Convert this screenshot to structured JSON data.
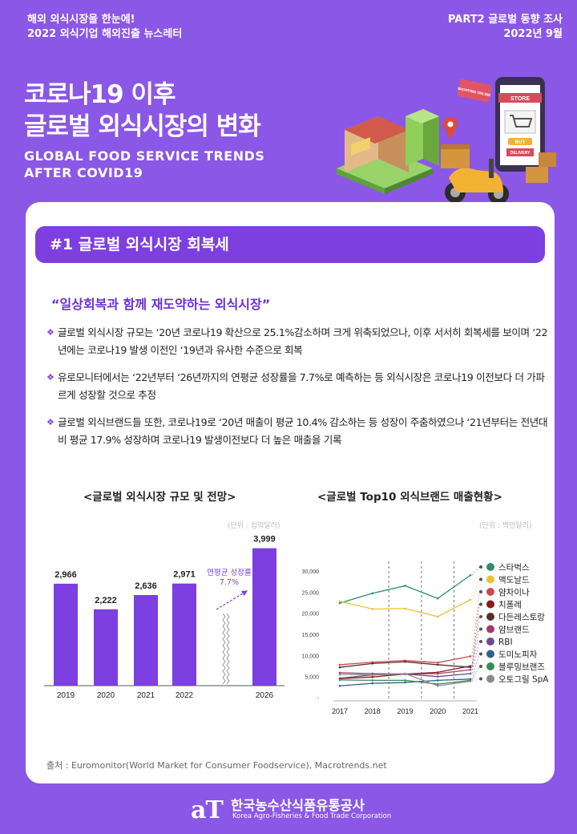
{
  "header": {
    "left_line1": "해외 외식시장을 한눈에!",
    "left_line2": "2022 외식기업 해외진출 뉴스레터",
    "right_line1": "PART2 글로벌 동향 조사",
    "right_line2": "2022년 9월"
  },
  "hero": {
    "title_line1": "코로나19 이후",
    "title_line2": "글로벌 외식시장의 변화",
    "subtitle_line1": "GLOBAL FOOD SERVICE TRENDS",
    "subtitle_line2": "AFTER COVID19",
    "sign_shopping": "SHOPPING ONLINE",
    "sign_store": "STORE",
    "sign_buy": "BUY",
    "sign_delivery": "DELIVERY"
  },
  "section": {
    "heading": "#1  글로벌 외식시장 회복세",
    "quote": "“일상회복과 함께 재도약하는 외식시장”",
    "bullets": [
      "글로벌 외식시장 규모는 ‘20년 코로나19 확산으로 25.1%감소하며 크게 위축되었으나, 이후 서서히 회복세를 보이며 ‘22년에는 코로나19 발생 이전인 ‘19년과 유사한 수준으로 회복",
      "유로모니터에서는 ‘22년부터 ‘26년까지의 연평균 성장률을 7.7%로 예측하는 등 외식시장은 코로나19 이전보다 더 가파르게 성장할 것으로 추정",
      "글로벌 외식브랜드들 또한, 코로나19로 ‘20년 매출이 평균 10.4% 감소하는 등 성장이 주춤하였으나 ‘21년부터는 전년대비 평균 17.9% 성장하며 코로나19 발생이전보다 더 높은 매출을 기록"
    ]
  },
  "charts": {
    "left_title": "<글로벌 외식시장 규모 및 전망>",
    "left_unit": "(단위 : 십억달러)",
    "right_title": "<글로벌 Top10 외식브랜드 매출현황>",
    "right_unit": "(단위 : 백만달러)",
    "cagr_label": "연평균 성장률",
    "cagr_value": "7.7%"
  },
  "chart_data": [
    {
      "type": "bar",
      "title": "<글로벌 외식시장 규모 및 전망>",
      "unit": "(단위 : 십억달러)",
      "categories": [
        "2019",
        "2020",
        "2021",
        "2022",
        "2026"
      ],
      "values": [
        2966,
        2222,
        2636,
        2971,
        3999
      ],
      "value_labels": [
        "2,966",
        "2,222",
        "2,636",
        "2,971",
        "3,999"
      ],
      "ylim": [
        0,
        4200
      ],
      "colors": {
        "bar": "#7d3fe0",
        "annotation": "#7d3fe0"
      }
    },
    {
      "type": "line",
      "title": "<글로벌 Top10 외식브랜드 매출현황>",
      "unit": "(단위 : 백만달러)",
      "x": [
        "2017",
        "2018",
        "2019",
        "2020",
        "2021"
      ],
      "yticks": [
        "30,000",
        "25,000",
        "20,000",
        "15,000",
        "10,000",
        "5,000",
        "-"
      ],
      "ylim": [
        0,
        32000
      ],
      "series": [
        {
          "name": "스타벅스",
          "color": "#2e8b6f",
          "values": [
            22400,
            24700,
            26500,
            23500,
            29000
          ]
        },
        {
          "name": "맥도날드",
          "color": "#e8c233",
          "values": [
            22800,
            21000,
            21100,
            19200,
            23200
          ]
        },
        {
          "name": "얌차이나",
          "color": "#c94b4b",
          "values": [
            7800,
            8400,
            8800,
            8300,
            9800
          ]
        },
        {
          "name": "치폴레",
          "color": "#8b1a1a",
          "values": [
            4500,
            4900,
            5600,
            6000,
            7500
          ]
        },
        {
          "name": "다든레스토랑",
          "color": "#5a2d2d",
          "values": [
            7200,
            8100,
            8500,
            7800,
            7200
          ]
        },
        {
          "name": "얌브랜드",
          "color": "#a5386a",
          "values": [
            5900,
            5700,
            5600,
            5700,
            6600
          ]
        },
        {
          "name": "RBI",
          "color": "#6e4a8c",
          "values": [
            4600,
            5400,
            5600,
            5000,
            5700
          ]
        },
        {
          "name": "도미노피자",
          "color": "#2f5f8f",
          "values": [
            2800,
            3400,
            3600,
            4100,
            4400
          ]
        },
        {
          "name": "블루밍브랜즈",
          "color": "#3a8a55",
          "values": [
            4200,
            4100,
            4100,
            3200,
            4100
          ]
        },
        {
          "name": "오토그릴 SpA",
          "color": "#8a8a8a",
          "values": [
            5500,
            5400,
            5700,
            2800,
            3900
          ]
        }
      ],
      "grid": false,
      "legend_placement": "right"
    }
  ],
  "source": "출처 : Euromonitor(World Market for Consumer Foodservice), Macrotrends.net",
  "footer": {
    "logo_mark": "aT",
    "org_kr": "한국농수산식품유통공사",
    "org_en": "Korea Agro-Fisheries & Food Trade Corporation"
  }
}
